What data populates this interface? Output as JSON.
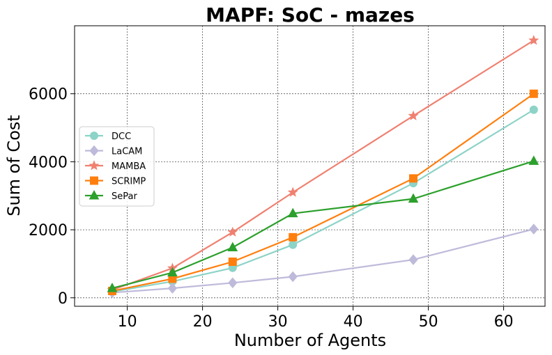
{
  "chart_data": {
    "type": "line",
    "title": "MAPF: SoC - mazes",
    "xlabel": "Number of Agents",
    "ylabel": "Sum of Cost",
    "x": [
      8,
      16,
      24,
      32,
      48,
      64
    ],
    "xlim": [
      3,
      65.5
    ],
    "ylim": [
      -250,
      8000
    ],
    "xticks": [
      10,
      20,
      30,
      40,
      50,
      60
    ],
    "xtick_labels": [
      "10",
      "20",
      "30",
      "40",
      "50",
      "60"
    ],
    "yticks": [
      0,
      2000,
      4000,
      6000
    ],
    "ytick_labels": [
      "0",
      "2000",
      "4000",
      "6000"
    ],
    "grid": true,
    "legend_position": "center-left",
    "series": [
      {
        "name": "DCC",
        "color": "#8dd3c7",
        "marker": "circle",
        "values": [
          180,
          480,
          880,
          1560,
          3370,
          5530
        ]
      },
      {
        "name": "LaCAM",
        "color": "#bebada",
        "marker": "diamond",
        "values": [
          150,
          280,
          440,
          620,
          1120,
          2020
        ]
      },
      {
        "name": "MAMBA",
        "color": "#f08070",
        "marker": "star",
        "values": [
          230,
          870,
          1930,
          3100,
          5350,
          7570
        ]
      },
      {
        "name": "SCRIMP",
        "color": "#ff7f0e",
        "marker": "square",
        "values": [
          200,
          560,
          1060,
          1780,
          3510,
          6000
        ]
      },
      {
        "name": "SePar",
        "color": "#2ca02c",
        "marker": "triangle",
        "values": [
          280,
          740,
          1480,
          2480,
          2910,
          4020
        ]
      }
    ]
  }
}
